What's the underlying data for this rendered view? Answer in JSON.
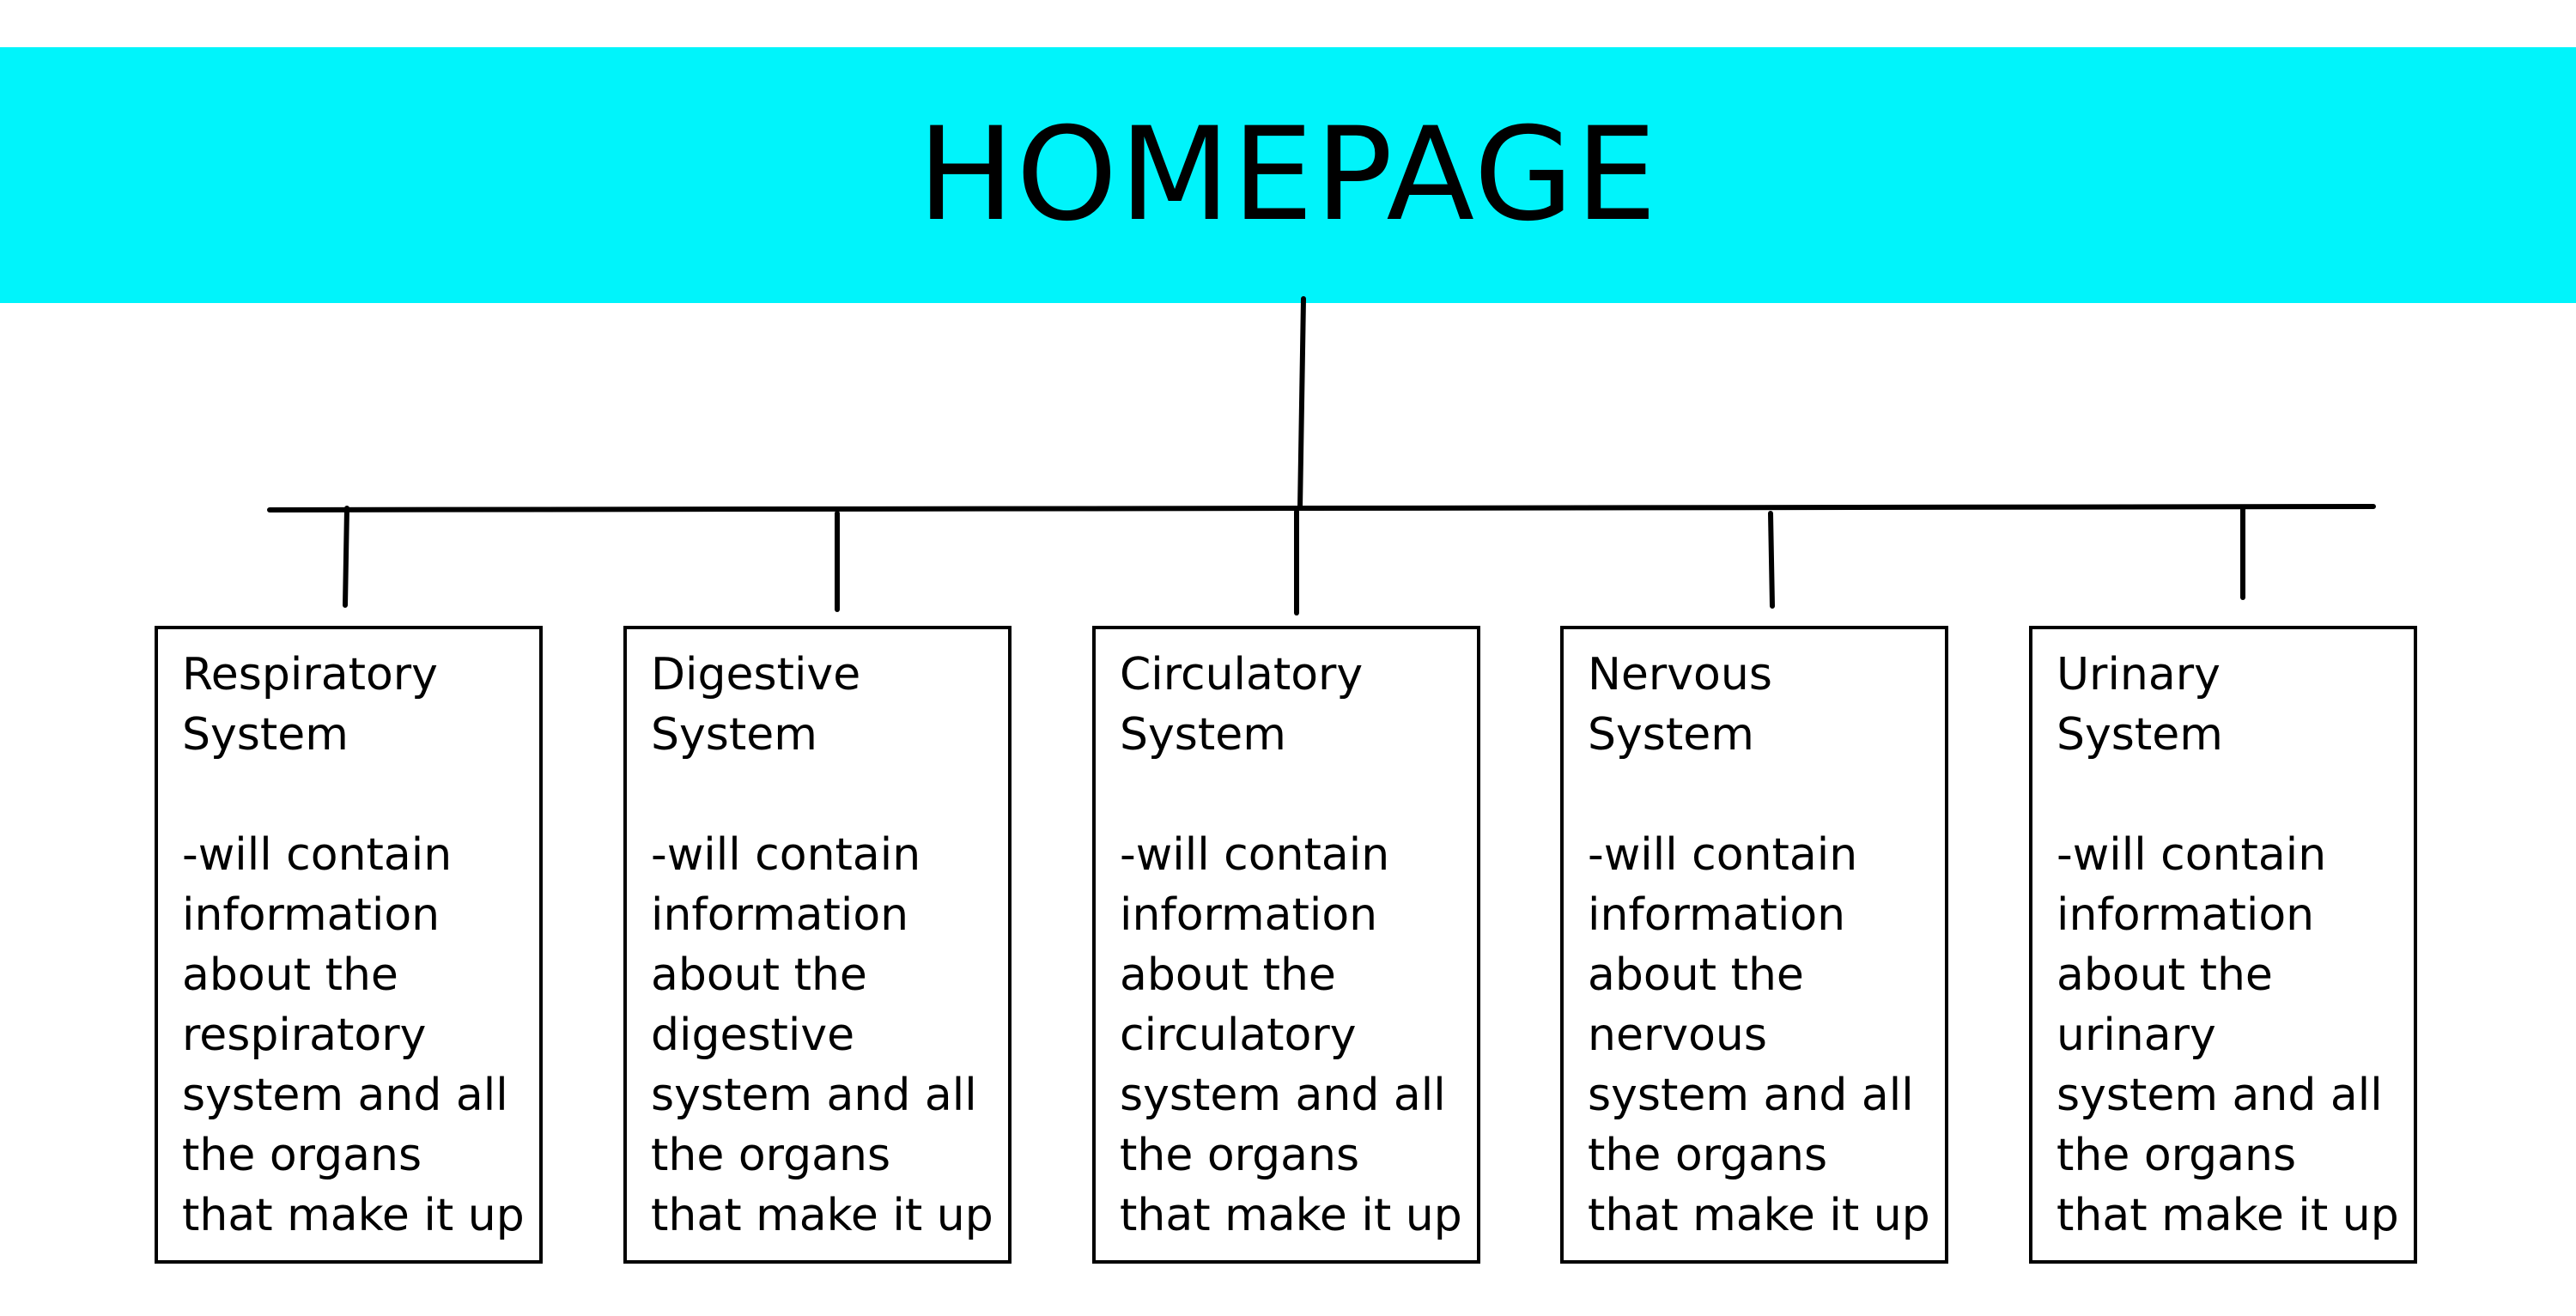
{
  "header": {
    "title": "HOMEPAGE",
    "background_color": "#00f4fb"
  },
  "diagram": {
    "type": "sitemap-tree",
    "root": "HOMEPAGE",
    "children": [
      {
        "id": "respiratory",
        "title": "Respiratory\nSystem",
        "description": "-will contain\ninformation\nabout the\nrespiratory\nsystem and all\nthe organs\nthat make it up"
      },
      {
        "id": "digestive",
        "title": "Digestive\nSystem",
        "description": "-will contain\ninformation\nabout the\ndigestive\nsystem and all\nthe organs\nthat make it up"
      },
      {
        "id": "circulatory",
        "title": "Circulatory\nSystem",
        "description": "-will contain\ninformation\nabout the\ncirculatory\nsystem and all\nthe organs\nthat make it up"
      },
      {
        "id": "nervous",
        "title": "Nervous\nSystem",
        "description": "-will contain\ninformation\nabout the\nnervous\nsystem and all\nthe organs\nthat make it up"
      },
      {
        "id": "urinary",
        "title": "Urinary\nSystem",
        "description": "-will contain\ninformation\nabout the\nurinary\nsystem and all\nthe organs\nthat make it up"
      }
    ]
  }
}
